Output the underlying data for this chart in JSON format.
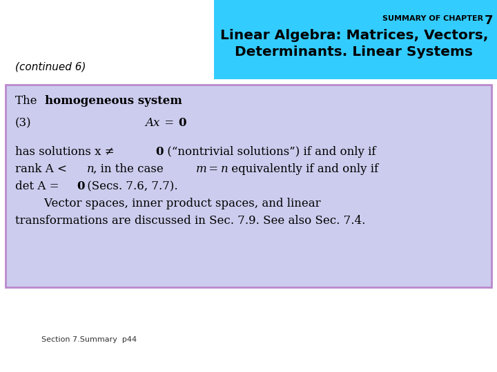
{
  "bg_color": "#ffffff",
  "header_bg": "#33ccff",
  "header_small_text": "SUMMARY OF CHAPTER",
  "header_number": "7",
  "header_main_line1": "Linear Algebra: Matrices, Vectors,",
  "header_main_line2": "Determinants. Linear Systems",
  "continued_text": "(continued 6)",
  "box_bg": "#ccccee",
  "box_border": "#bb88cc",
  "footer_text": "Section 7.Summary  p44",
  "text_color": "#000000",
  "header_text_color": "#000000",
  "continued_color": "#000000"
}
